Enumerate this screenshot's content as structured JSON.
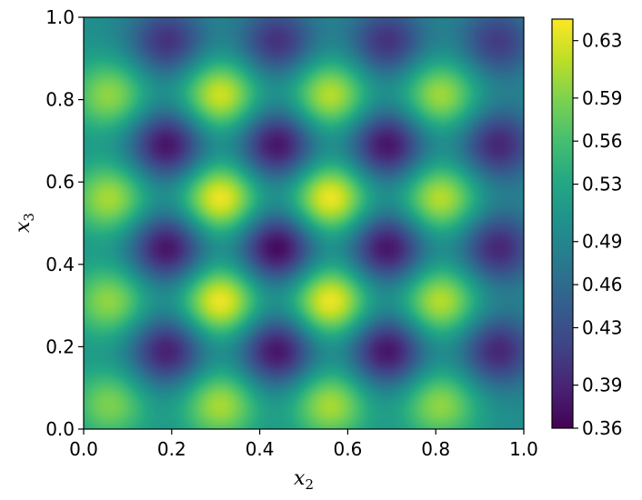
{
  "chart_data": {
    "type": "heatmap",
    "title": "",
    "xlabel": {
      "base": "x",
      "sub": "2"
    },
    "ylabel": {
      "base": "x",
      "sub": "3"
    },
    "xlim": [
      0.0,
      1.0
    ],
    "ylim": [
      0.0,
      1.0
    ],
    "x_ticks": [
      "0.0",
      "0.2",
      "0.4",
      "0.6",
      "0.8",
      "1.0"
    ],
    "y_ticks": [
      "0.0",
      "0.2",
      "0.4",
      "0.6",
      "0.8",
      "1.0"
    ],
    "colormap": "viridis",
    "colorbar": {
      "vmin": 0.36,
      "vmax": 0.645,
      "ticks": [
        "0.36",
        "0.39",
        "0.43",
        "0.46",
        "0.49",
        "0.53",
        "0.56",
        "0.59",
        "0.63"
      ],
      "tick_values": [
        0.36,
        0.39,
        0.43,
        0.46,
        0.49,
        0.53,
        0.56,
        0.59,
        0.63
      ]
    },
    "field": {
      "description_of_pattern": "checkerboard of maxima and minima",
      "baseline": 0.5,
      "high_peaks": [
        [
          0.06,
          0.81,
          0.6
        ],
        [
          0.31,
          0.81,
          0.63
        ],
        [
          0.56,
          0.81,
          0.62
        ],
        [
          0.81,
          0.81,
          0.61
        ],
        [
          0.06,
          0.56,
          0.61
        ],
        [
          0.31,
          0.56,
          0.645
        ],
        [
          0.56,
          0.56,
          0.645
        ],
        [
          0.81,
          0.56,
          0.62
        ],
        [
          0.06,
          0.31,
          0.6
        ],
        [
          0.31,
          0.31,
          0.645
        ],
        [
          0.56,
          0.31,
          0.645
        ],
        [
          0.81,
          0.31,
          0.62
        ],
        [
          0.06,
          0.06,
          0.59
        ],
        [
          0.31,
          0.06,
          0.61
        ],
        [
          0.56,
          0.06,
          0.61
        ],
        [
          0.81,
          0.06,
          0.6
        ]
      ],
      "low_peaks": [
        [
          0.19,
          0.94,
          0.4
        ],
        [
          0.44,
          0.94,
          0.4
        ],
        [
          0.69,
          0.94,
          0.4
        ],
        [
          0.94,
          0.94,
          0.41
        ],
        [
          0.19,
          0.69,
          0.37
        ],
        [
          0.44,
          0.69,
          0.37
        ],
        [
          0.69,
          0.69,
          0.37
        ],
        [
          0.94,
          0.69,
          0.39
        ],
        [
          0.19,
          0.44,
          0.37
        ],
        [
          0.44,
          0.44,
          0.36
        ],
        [
          0.69,
          0.44,
          0.37
        ],
        [
          0.94,
          0.44,
          0.39
        ],
        [
          0.19,
          0.19,
          0.38
        ],
        [
          0.44,
          0.19,
          0.37
        ],
        [
          0.69,
          0.19,
          0.37
        ],
        [
          0.94,
          0.19,
          0.39
        ]
      ]
    }
  }
}
